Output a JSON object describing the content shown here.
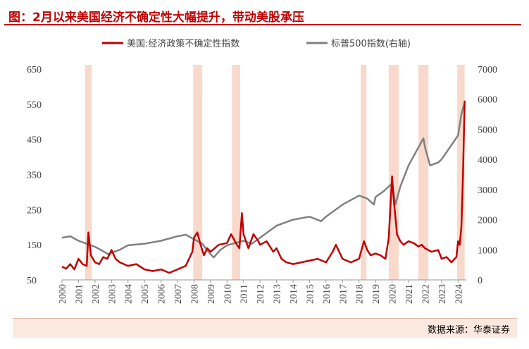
{
  "title": "图：2月以来美国经济不确定性大幅提升，带动美股承压",
  "source": "数据来源：华泰证券",
  "colors": {
    "accent": "#c00000",
    "epu": "#c00000",
    "spx": "#808080",
    "shade": "#f9d9cb",
    "source_bg": "#fbe9df"
  },
  "chart_data": {
    "type": "line",
    "legend_position": "top",
    "grid": false,
    "x_ticks": [
      "2000",
      "2001",
      "2002",
      "2003",
      "2004",
      "2005",
      "2006",
      "2007",
      "2008",
      "2009",
      "2010",
      "2011",
      "2012",
      "2013",
      "2014",
      "2015",
      "2016",
      "2017",
      "2018",
      "2019",
      "2020",
      "2021",
      "2022",
      "2023",
      "2024"
    ],
    "y_left": {
      "ticks": [
        50,
        150,
        250,
        350,
        450,
        550,
        650
      ],
      "range": [
        50,
        650
      ]
    },
    "y_right": {
      "ticks": [
        0,
        1000,
        2000,
        3000,
        4000,
        5000,
        6000,
        7000
      ],
      "range": [
        0,
        7000
      ]
    },
    "shaded_periods": [
      [
        2001.4,
        2001.8
      ],
      [
        2007.95,
        2008.5
      ],
      [
        2010.3,
        2010.8
      ],
      [
        2018.1,
        2018.45
      ],
      [
        2019.8,
        2020.4
      ],
      [
        2021.6,
        2022.2
      ],
      [
        2023.95,
        2024.4
      ]
    ],
    "series": [
      {
        "name": "美国:经济政策不确定性指数",
        "axis": "left",
        "x": [
          2000,
          2000.25,
          2000.5,
          2000.75,
          2001,
          2001.25,
          2001.5,
          2001.6,
          2001.75,
          2002,
          2002.25,
          2002.5,
          2002.75,
          2003,
          2003.25,
          2003.5,
          2003.75,
          2004,
          2004.5,
          2005,
          2005.5,
          2006,
          2006.5,
          2007,
          2007.5,
          2007.9,
          2008,
          2008.2,
          2008.4,
          2008.6,
          2008.8,
          2009,
          2009.5,
          2010,
          2010.25,
          2010.6,
          2010.75,
          2010.9,
          2011,
          2011.3,
          2011.6,
          2011.9,
          2012,
          2012.4,
          2012.8,
          2013,
          2013.3,
          2013.6,
          2014,
          2014.5,
          2015,
          2015.5,
          2016,
          2016.4,
          2016.6,
          2016.9,
          2017,
          2017.5,
          2018,
          2018.3,
          2018.5,
          2018.7,
          2019,
          2019.3,
          2019.6,
          2019.8,
          2020,
          2020.1,
          2020.2,
          2020.3,
          2020.5,
          2020.7,
          2021,
          2021.3,
          2021.6,
          2021.8,
          2022,
          2022.4,
          2022.8,
          2023,
          2023.3,
          2023.6,
          2023.9,
          2024,
          2024.1,
          2024.2,
          2024.3,
          2024.4
        ],
        "values": [
          88,
          82,
          95,
          80,
          110,
          95,
          90,
          185,
          120,
          100,
          95,
          115,
          110,
          135,
          110,
          100,
          95,
          90,
          95,
          80,
          75,
          80,
          70,
          80,
          90,
          130,
          170,
          185,
          150,
          120,
          140,
          130,
          150,
          155,
          180,
          150,
          140,
          240,
          180,
          140,
          180,
          160,
          150,
          160,
          130,
          140,
          110,
          100,
          95,
          100,
          105,
          110,
          100,
          130,
          150,
          120,
          110,
          100,
          110,
          160,
          135,
          120,
          125,
          120,
          110,
          170,
          345,
          280,
          230,
          180,
          160,
          150,
          160,
          155,
          145,
          150,
          140,
          130,
          135,
          110,
          115,
          100,
          115,
          160,
          150,
          200,
          350,
          560
        ]
      },
      {
        "name": "标普500指数(右轴)",
        "axis": "right",
        "x": [
          2000,
          2000.5,
          2001,
          2001.5,
          2002,
          2002.5,
          2002.8,
          2003,
          2003.5,
          2004,
          2005,
          2006,
          2007,
          2007.5,
          2008,
          2008.5,
          2009,
          2009.2,
          2009.6,
          2010,
          2011,
          2011.5,
          2012,
          2013,
          2014,
          2015,
          2015.7,
          2016,
          2017,
          2018,
          2018.5,
          2018.9,
          2019,
          2019.5,
          2020,
          2020.2,
          2020.5,
          2021,
          2021.5,
          2021.9,
          2022,
          2022.3,
          2022.8,
          2023,
          2023.5,
          2024,
          2024.2,
          2024.4
        ],
        "values": [
          1400,
          1450,
          1300,
          1200,
          1100,
          950,
          850,
          900,
          1000,
          1150,
          1200,
          1300,
          1450,
          1500,
          1350,
          1200,
          850,
          750,
          1000,
          1150,
          1300,
          1200,
          1400,
          1800,
          2000,
          2100,
          1950,
          2100,
          2500,
          2800,
          2700,
          2500,
          2750,
          2950,
          3200,
          2500,
          3100,
          3800,
          4300,
          4700,
          4400,
          3800,
          3900,
          4000,
          4400,
          4800,
          5500,
          5900
        ]
      }
    ]
  }
}
